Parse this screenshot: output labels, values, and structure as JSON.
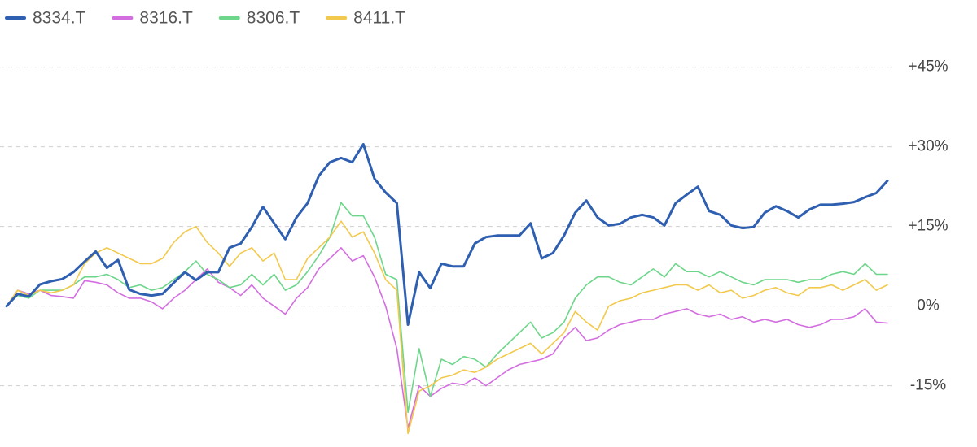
{
  "chart_data": {
    "type": "line",
    "ylim": [
      -25,
      50
    ],
    "yticks": [
      {
        "value": 45,
        "label": "+45%"
      },
      {
        "value": 30,
        "label": "+30%"
      },
      {
        "value": 15,
        "label": "+15%"
      },
      {
        "value": 0,
        "label": "0%"
      },
      {
        "value": -15,
        "label": "-15%"
      }
    ],
    "grid": true,
    "legend": "top-left",
    "series": [
      {
        "name": "8334.T",
        "color": "#2f5fb0",
        "values": [
          0,
          2.3,
          1.8,
          4.1,
          4.7,
          5.1,
          6.4,
          8.4,
          10.3,
          7.2,
          8.7,
          3.1,
          2.3,
          2.0,
          2.3,
          4.4,
          6.4,
          4.9,
          6.4,
          6.4,
          11.0,
          11.8,
          14.9,
          18.7,
          15.6,
          12.6,
          16.7,
          19.4,
          24.5,
          27.1,
          27.9,
          27.1,
          30.5,
          24.0,
          21.4,
          19.4,
          -3.5,
          6.4,
          3.4,
          8.0,
          7.5,
          7.5,
          11.8,
          13.0,
          13.3,
          13.3,
          13.3,
          15.6,
          9.0,
          10.0,
          13.3,
          17.6,
          19.9,
          16.7,
          15.2,
          15.5,
          16.7,
          17.2,
          16.7,
          15.2,
          19.4,
          21.0,
          22.5,
          17.9,
          17.2,
          15.2,
          14.7,
          14.9,
          17.6,
          18.8,
          17.9,
          16.7,
          18.2,
          19.1,
          19.1,
          19.3,
          19.6,
          20.5,
          21.3,
          23.6
        ]
      },
      {
        "name": "8316.T",
        "color": "#d36ee0",
        "values": [
          0,
          3,
          2.3,
          3,
          2,
          1.8,
          1.5,
          4.8,
          4.5,
          4,
          2.5,
          1.5,
          1.5,
          0.8,
          -0.5,
          1.5,
          3,
          5,
          7,
          4.5,
          3.5,
          2,
          4,
          1.5,
          0,
          -1.5,
          1.5,
          3.5,
          7,
          9,
          11,
          8.5,
          9.5,
          5.5,
          0,
          -8,
          -23,
          -15,
          -17,
          -15.5,
          -14.5,
          -14.8,
          -13.5,
          -15,
          -13.5,
          -12,
          -11,
          -10.5,
          -10,
          -9,
          -6,
          -4,
          -6.5,
          -6,
          -4.5,
          -3.5,
          -3,
          -2.5,
          -2.5,
          -1.5,
          -1,
          -0.5,
          -1.5,
          -2,
          -1.5,
          -2.5,
          -2,
          -3,
          -2.5,
          -3,
          -2.5,
          -3.5,
          -4,
          -3.5,
          -2.5,
          -2.5,
          -2,
          -0.5,
          -3,
          -3.2
        ]
      },
      {
        "name": "8306.T",
        "color": "#6dd68a",
        "values": [
          0,
          2,
          1.5,
          3,
          3,
          3,
          4,
          5.5,
          5.5,
          6,
          5,
          3.5,
          4,
          3,
          3.5,
          5,
          6.5,
          8.5,
          6,
          5,
          3.5,
          4,
          6,
          4,
          6,
          3,
          4,
          6.5,
          9.5,
          13,
          19.5,
          17,
          17,
          13,
          6,
          5,
          -20,
          -8,
          -17,
          -10,
          -11,
          -9.5,
          -10,
          -11.5,
          -9,
          -7,
          -5,
          -3,
          -6,
          -5,
          -3,
          1.5,
          4,
          5.5,
          5.5,
          4.5,
          4,
          5.5,
          7,
          5.5,
          8,
          6.5,
          6.5,
          5.5,
          6.5,
          5.5,
          4.5,
          4,
          5,
          5,
          5,
          4.5,
          5,
          5,
          6,
          6.5,
          6,
          8,
          6,
          6
        ]
      },
      {
        "name": "8411.T",
        "color": "#f2c94c",
        "values": [
          0,
          3,
          2,
          3,
          2.5,
          3,
          4,
          8,
          10,
          11,
          10,
          9,
          8,
          8,
          9,
          12,
          14,
          15,
          12,
          10,
          7.5,
          10,
          11,
          8.5,
          10,
          5,
          5,
          9,
          11,
          13,
          16,
          13,
          14,
          10,
          5,
          3,
          -24,
          -16,
          -15,
          -13.5,
          -13,
          -12,
          -12.5,
          -11.5,
          -10,
          -9,
          -8,
          -7,
          -9,
          -7,
          -5,
          -1,
          -3,
          -4.5,
          0,
          1,
          1.5,
          2.5,
          3,
          3.5,
          4,
          4,
          3,
          4,
          2.5,
          3,
          1.5,
          2,
          3,
          3.5,
          2.5,
          2,
          3.5,
          3.5,
          4,
          3,
          4,
          5,
          3,
          4
        ]
      }
    ]
  }
}
